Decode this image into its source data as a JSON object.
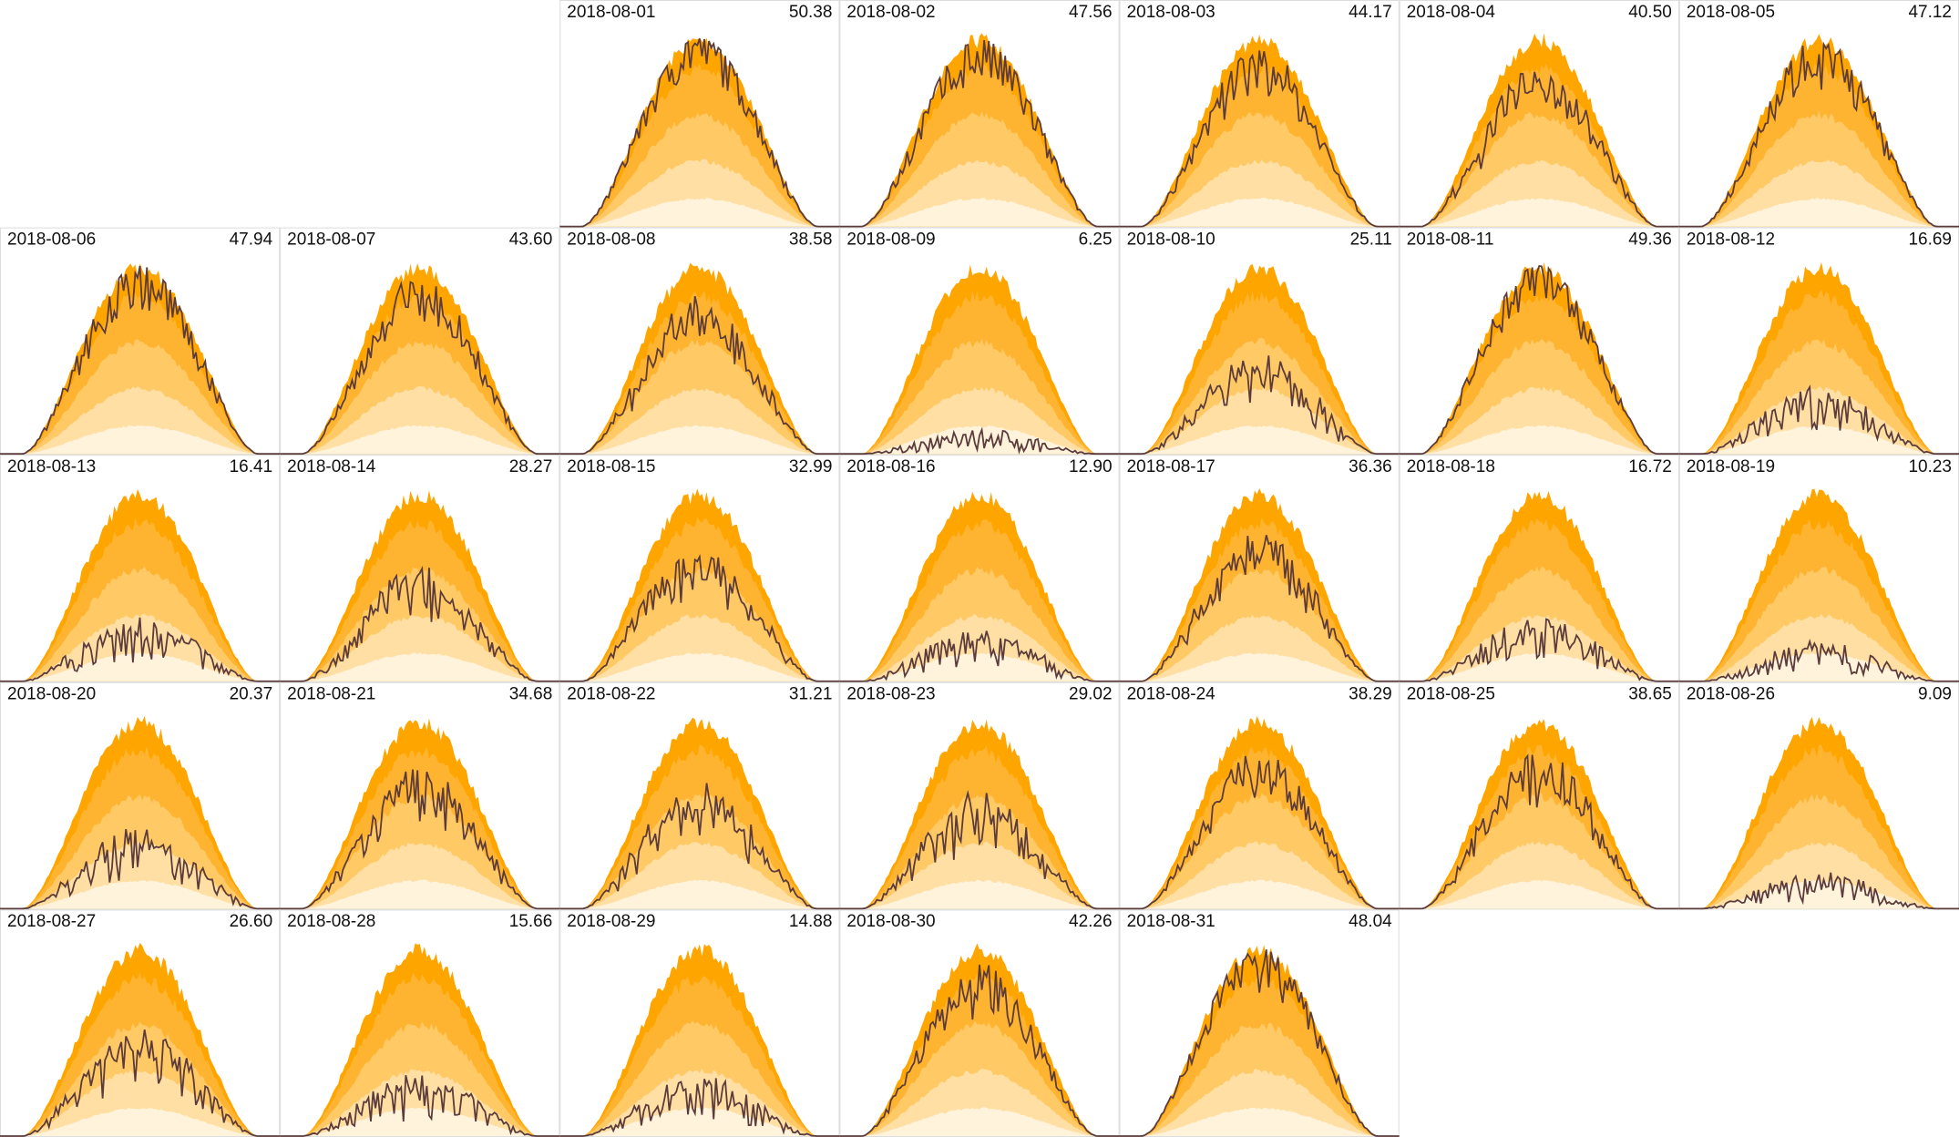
{
  "chart_data": {
    "type": "calendar",
    "categories": [
      "2018-08-01",
      "2018-08-02",
      "2018-08-03",
      "2018-08-04",
      "2018-08-05",
      "2018-08-06",
      "2018-08-07",
      "2018-08-08",
      "2018-08-09",
      "2018-08-10",
      "2018-08-11",
      "2018-08-12",
      "2018-08-13",
      "2018-08-14",
      "2018-08-15",
      "2018-08-16",
      "2018-08-17",
      "2018-08-18",
      "2018-08-19",
      "2018-08-20",
      "2018-08-21",
      "2018-08-22",
      "2018-08-23",
      "2018-08-24",
      "2018-08-25",
      "2018-08-26",
      "2018-08-27",
      "2018-08-28",
      "2018-08-29",
      "2018-08-30",
      "2018-08-31"
    ],
    "values": [
      50.38,
      47.56,
      44.17,
      40.5,
      47.12,
      47.94,
      43.6,
      38.58,
      6.25,
      25.11,
      49.36,
      16.69,
      16.41,
      28.27,
      32.99,
      12.9,
      36.36,
      16.72,
      10.23,
      20.37,
      34.68,
      31.21,
      29.02,
      38.29,
      38.65,
      9.09,
      26.6,
      15.66,
      14.88,
      42.26,
      48.04
    ],
    "value_labels": [
      "50.38",
      "47.56",
      "44.17",
      "40.50",
      "47.12",
      "47.94",
      "43.60",
      "38.58",
      "6.25",
      "25.11",
      "49.36",
      "16.69",
      "16.41",
      "28.27",
      "32.99",
      "12.90",
      "36.36",
      "16.72",
      "10.23",
      "20.37",
      "34.68",
      "31.21",
      "29.02",
      "38.29",
      "38.65",
      "9.09",
      "26.60",
      "15.66",
      "14.88",
      "42.26",
      "48.04"
    ],
    "color": "#5b3b3b",
    "band_colors": [
      "#ffa500",
      "#ffb431",
      "#ffc966",
      "#ffdfa3",
      "#fff3dc"
    ]
  }
}
